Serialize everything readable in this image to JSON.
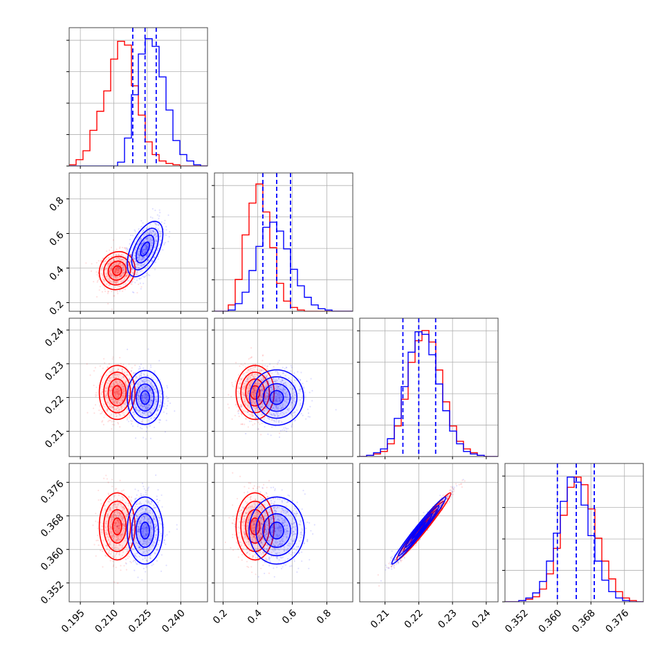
{
  "chart_data": {
    "type": "corner",
    "parameters": [
      {
        "xlim": [
          0.19,
          0.252
        ],
        "ticks": [
          0.195,
          0.21,
          0.225,
          0.24
        ],
        "tick_labels": [
          "0.195",
          "0.210",
          "0.225",
          "0.240"
        ]
      },
      {
        "xlim": [
          0.15,
          0.95
        ],
        "ticks": [
          0.2,
          0.4,
          0.6,
          0.8
        ],
        "tick_labels": [
          "0.2",
          "0.4",
          "0.6",
          "0.8"
        ]
      },
      {
        "xlim": [
          0.2025,
          0.2435
        ],
        "ticks": [
          0.21,
          0.22,
          0.23,
          0.24
        ],
        "tick_labels": [
          "0.21",
          "0.22",
          "0.23",
          "0.24"
        ]
      },
      {
        "xlim": [
          0.3475,
          0.3805
        ],
        "ticks": [
          0.352,
          0.36,
          0.368,
          0.376
        ],
        "tick_labels": [
          "0.352",
          "0.360",
          "0.368",
          "0.376"
        ]
      }
    ],
    "series": [
      {
        "color": "#ff0000",
        "center": [
          0.2115,
          0.385,
          0.2215,
          0.3655
        ],
        "sigma": [
          0.004,
          0.055,
          0.004,
          0.004
        ],
        "correlation": [
          [
            1.0,
            0.1,
            0.0,
            0.0
          ],
          [
            0.1,
            1.0,
            0.0,
            0.0
          ],
          [
            0.0,
            0.0,
            1.0,
            0.98
          ],
          [
            0.0,
            0.0,
            0.98,
            1.0
          ]
        ],
        "histograms": [
          [
            0.01,
            0.05,
            0.12,
            0.28,
            0.43,
            0.59,
            0.84,
            0.98,
            0.95,
            0.63,
            0.4,
            0.19,
            0.09,
            0.04,
            0.02,
            0.01,
            0.0,
            0.0,
            0.0,
            0.0
          ],
          [
            0.0,
            0.0,
            0.05,
            0.25,
            0.6,
            0.85,
            1.0,
            0.78,
            0.5,
            0.22,
            0.08,
            0.03,
            0.01,
            0.0,
            0.0,
            0.0,
            0.0,
            0.0,
            0.0,
            0.0
          ],
          [
            0.0,
            0.01,
            0.02,
            0.04,
            0.1,
            0.24,
            0.45,
            0.74,
            0.91,
            0.99,
            0.9,
            0.68,
            0.43,
            0.24,
            0.12,
            0.06,
            0.03,
            0.01,
            0.0,
            0.0
          ],
          [
            0.0,
            0.0,
            0.01,
            0.02,
            0.04,
            0.1,
            0.22,
            0.42,
            0.68,
            0.9,
            0.98,
            0.92,
            0.73,
            0.5,
            0.32,
            0.18,
            0.08,
            0.03,
            0.01,
            0.0
          ]
        ]
      },
      {
        "color": "#0000ff",
        "center": [
          0.224,
          0.51,
          0.22,
          0.3645
        ],
        "sigma": [
          0.004,
          0.08,
          0.004,
          0.004
        ],
        "correlation": [
          [
            1.0,
            0.55,
            0.0,
            0.0
          ],
          [
            0.55,
            1.0,
            0.0,
            0.0
          ],
          [
            0.0,
            0.0,
            1.0,
            0.98
          ],
          [
            0.0,
            0.0,
            0.98,
            1.0
          ]
        ],
        "quantiles": [
          [
            0.2185,
            0.224,
            0.229
          ],
          [
            0.43,
            0.51,
            0.59
          ],
          [
            0.2153,
            0.22,
            0.225
          ],
          [
            0.36,
            0.3645,
            0.3688
          ]
        ],
        "histograms": [
          [
            0.0,
            0.0,
            0.0,
            0.0,
            0.0,
            0.0,
            0.0,
            0.03,
            0.22,
            0.56,
            0.88,
            1.0,
            0.94,
            0.7,
            0.44,
            0.2,
            0.09,
            0.04,
            0.01,
            0.0
          ],
          [
            0.0,
            0.0,
            0.01,
            0.06,
            0.15,
            0.32,
            0.51,
            0.66,
            0.7,
            0.63,
            0.49,
            0.33,
            0.2,
            0.11,
            0.05,
            0.02,
            0.01,
            0.0,
            0.0,
            0.0
          ],
          [
            0.0,
            0.01,
            0.03,
            0.06,
            0.14,
            0.3,
            0.55,
            0.82,
            0.98,
            0.96,
            0.8,
            0.57,
            0.36,
            0.2,
            0.1,
            0.04,
            0.02,
            0.01,
            0.0,
            0.0
          ],
          [
            0.0,
            0.0,
            0.01,
            0.03,
            0.07,
            0.16,
            0.32,
            0.54,
            0.79,
            0.98,
            0.94,
            0.76,
            0.52,
            0.32,
            0.17,
            0.08,
            0.03,
            0.01,
            0.0,
            0.0
          ]
        ]
      }
    ],
    "contour_levels_sigma": [
      0.5,
      1.0,
      1.5,
      2.0
    ],
    "grid": true,
    "legend": "none",
    "title": "",
    "xlabel": "",
    "ylabel": ""
  }
}
